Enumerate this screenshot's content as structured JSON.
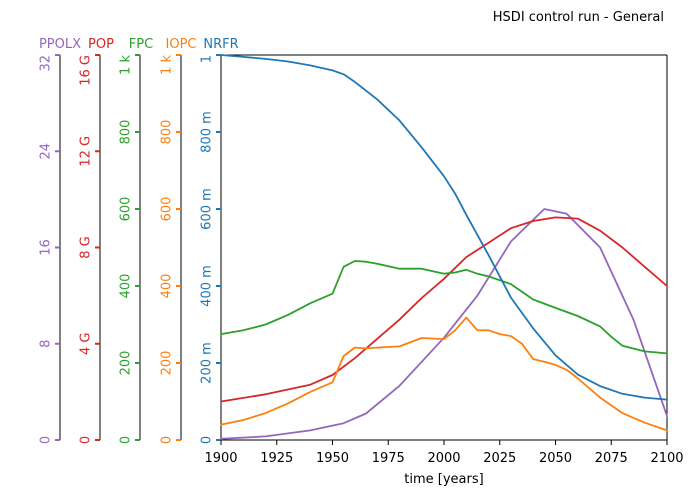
{
  "chart_data": {
    "type": "line",
    "title": "HSDI control run - General",
    "xlabel": "time [years]",
    "xlim": [
      1900,
      2100
    ],
    "x_ticks": [
      "1900",
      "1925",
      "1950",
      "1975",
      "2000",
      "2025",
      "2050",
      "2075",
      "2100"
    ],
    "axes": [
      {
        "name": "PPOLX",
        "color": "#9467bd",
        "ylim": [
          0,
          32
        ],
        "tick_values": [
          0,
          8,
          16,
          24,
          32
        ],
        "tick_labels": [
          "0",
          "8",
          "16",
          "24",
          "32"
        ]
      },
      {
        "name": "POP",
        "color": "#d62728",
        "ylim": [
          0,
          16000000000
        ],
        "tick_values": [
          0,
          4000000000,
          8000000000,
          12000000000,
          16000000000
        ],
        "tick_labels": [
          "0",
          "4 G",
          "8 G",
          "12 G",
          "16 G"
        ]
      },
      {
        "name": "FPC",
        "color": "#2ca02c",
        "ylim": [
          0,
          1000
        ],
        "tick_values": [
          0,
          200,
          400,
          600,
          800,
          1000
        ],
        "tick_labels": [
          "0",
          "200",
          "400",
          "600",
          "800",
          "1 k"
        ]
      },
      {
        "name": "IOPC",
        "color": "#ff7f0e",
        "ylim": [
          0,
          1000
        ],
        "tick_values": [
          0,
          200,
          400,
          600,
          800,
          1000
        ],
        "tick_labels": [
          "0",
          "200",
          "400",
          "600",
          "800",
          "1 k"
        ]
      },
      {
        "name": "NRFR",
        "color": "#1f77b4",
        "ylim": [
          0,
          1
        ],
        "tick_values": [
          0,
          0.2,
          0.4,
          0.6,
          0.8,
          1
        ],
        "tick_labels": [
          "0",
          "200 m",
          "400 m",
          "600 m",
          "800 m",
          "1"
        ]
      }
    ],
    "series": [
      {
        "name": "PPOLX",
        "axis": 0,
        "x": [
          1900,
          1920,
          1940,
          1955,
          1965,
          1980,
          2000,
          2015,
          2030,
          2045,
          2055,
          2070,
          2085,
          2100
        ],
        "y": [
          0.1,
          0.3,
          0.8,
          1.4,
          2.2,
          4.5,
          8.5,
          12.0,
          16.5,
          19.2,
          18.8,
          16.0,
          10.0,
          2.0
        ]
      },
      {
        "name": "POP",
        "axis": 1,
        "x": [
          1900,
          1920,
          1940,
          1950,
          1960,
          1970,
          1980,
          1990,
          2000,
          2010,
          2020,
          2030,
          2040,
          2050,
          2060,
          2070,
          2080,
          2090,
          2100
        ],
        "y": [
          1600000000.0,
          1900000000.0,
          2300000000.0,
          2700000000.0,
          3400000000.0,
          4200000000.0,
          5000000000.0,
          5900000000.0,
          6700000000.0,
          7600000000.0,
          8200000000.0,
          8800000000.0,
          9100000000.0,
          9250000000.0,
          9200000000.0,
          8700000000.0,
          8000000000.0,
          7200000000.0,
          6400000000.0
        ]
      },
      {
        "name": "FPC",
        "axis": 2,
        "x": [
          1900,
          1910,
          1920,
          1930,
          1940,
          1950,
          1955,
          1960,
          1965,
          1970,
          1980,
          1990,
          2000,
          2005,
          2010,
          2015,
          2020,
          2030,
          2040,
          2050,
          2060,
          2070,
          2075,
          2080,
          2090,
          2100
        ],
        "y": [
          275,
          285,
          300,
          325,
          355,
          380,
          450,
          465,
          463,
          458,
          445,
          445,
          432,
          435,
          442,
          432,
          425,
          405,
          365,
          343,
          322,
          295,
          268,
          245,
          230,
          225
        ]
      },
      {
        "name": "IOPC",
        "axis": 3,
        "x": [
          1900,
          1910,
          1920,
          1930,
          1940,
          1950,
          1955,
          1960,
          1965,
          1970,
          1980,
          1990,
          2000,
          2005,
          2010,
          2015,
          2020,
          2025,
          2030,
          2035,
          2040,
          2045,
          2050,
          2055,
          2060,
          2070,
          2080,
          2090,
          2100
        ],
        "y": [
          40,
          52,
          70,
          95,
          125,
          150,
          218,
          240,
          238,
          240,
          243,
          265,
          262,
          285,
          318,
          285,
          285,
          275,
          270,
          250,
          210,
          203,
          195,
          182,
          160,
          110,
          70,
          45,
          25
        ]
      },
      {
        "name": "NRFR",
        "axis": 4,
        "x": [
          1900,
          1910,
          1920,
          1930,
          1940,
          1950,
          1955,
          1960,
          1970,
          1980,
          1990,
          2000,
          2005,
          2010,
          2020,
          2030,
          2040,
          2050,
          2060,
          2070,
          2080,
          2090,
          2100
        ],
        "y": [
          1.0,
          0.995,
          0.99,
          0.983,
          0.973,
          0.96,
          0.95,
          0.93,
          0.885,
          0.83,
          0.76,
          0.685,
          0.64,
          0.585,
          0.48,
          0.37,
          0.29,
          0.22,
          0.17,
          0.14,
          0.12,
          0.11,
          0.105
        ]
      }
    ]
  }
}
